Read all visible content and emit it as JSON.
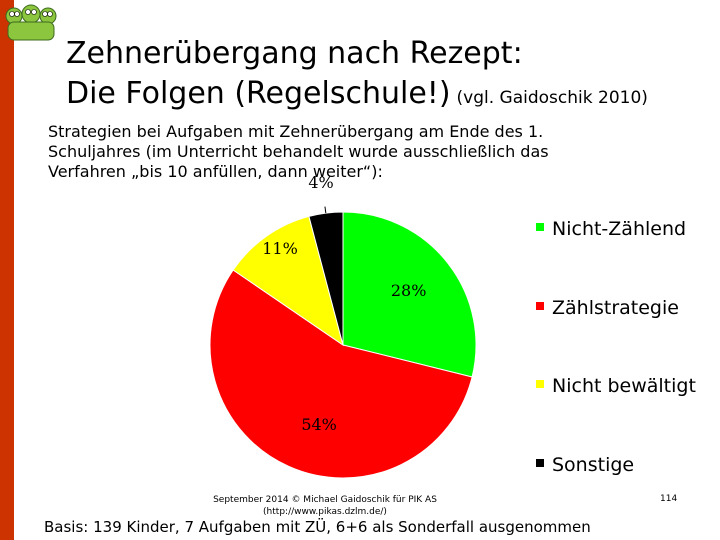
{
  "slide": {
    "title_line1": "Zehnerübergang nach Rezept:",
    "title_line2": "Die Folgen (Regelschule!)",
    "title_cite": "(vgl. Gaidoschik 2010)",
    "intro_line1": "Strategien bei Aufgaben mit Zehnerübergang am Ende des 1.",
    "intro_line2": "Schuljahres (im Unterricht behandelt wurde ausschließlich das",
    "intro_line3": "Verfahren „bis 10 anfüllen, dann weiter“):",
    "footer_line1": "September 2014 © Michael Gaidoschik für PIK AS",
    "footer_line2": "(http://www.pikas.dzlm.de/)",
    "page_number": "114",
    "basis": "Basis: 139 Kinder, 7 Aufgaben mit ZÜ, 6+6 als Sonderfall ausgenommen"
  },
  "colors": {
    "accent_bar": "#cc3300",
    "logo_green": "#8cc63f"
  },
  "chart_data": {
    "type": "pie",
    "title": "",
    "start_angle_deg": 0,
    "direction": "clockwise",
    "slices": [
      {
        "label": "Nicht-Zählend",
        "value": 28,
        "display": "28%",
        "color": "#00ff00"
      },
      {
        "label": "Zählstrategie",
        "value": 54,
        "display": "54%",
        "color": "#ff0000"
      },
      {
        "label": "Nicht bewältigt",
        "value": 11,
        "display": "11%",
        "color": "#ffff00"
      },
      {
        "label": "Sonstige",
        "value": 4,
        "display": "4%",
        "color": "#000000"
      }
    ],
    "legend_position": "right"
  }
}
